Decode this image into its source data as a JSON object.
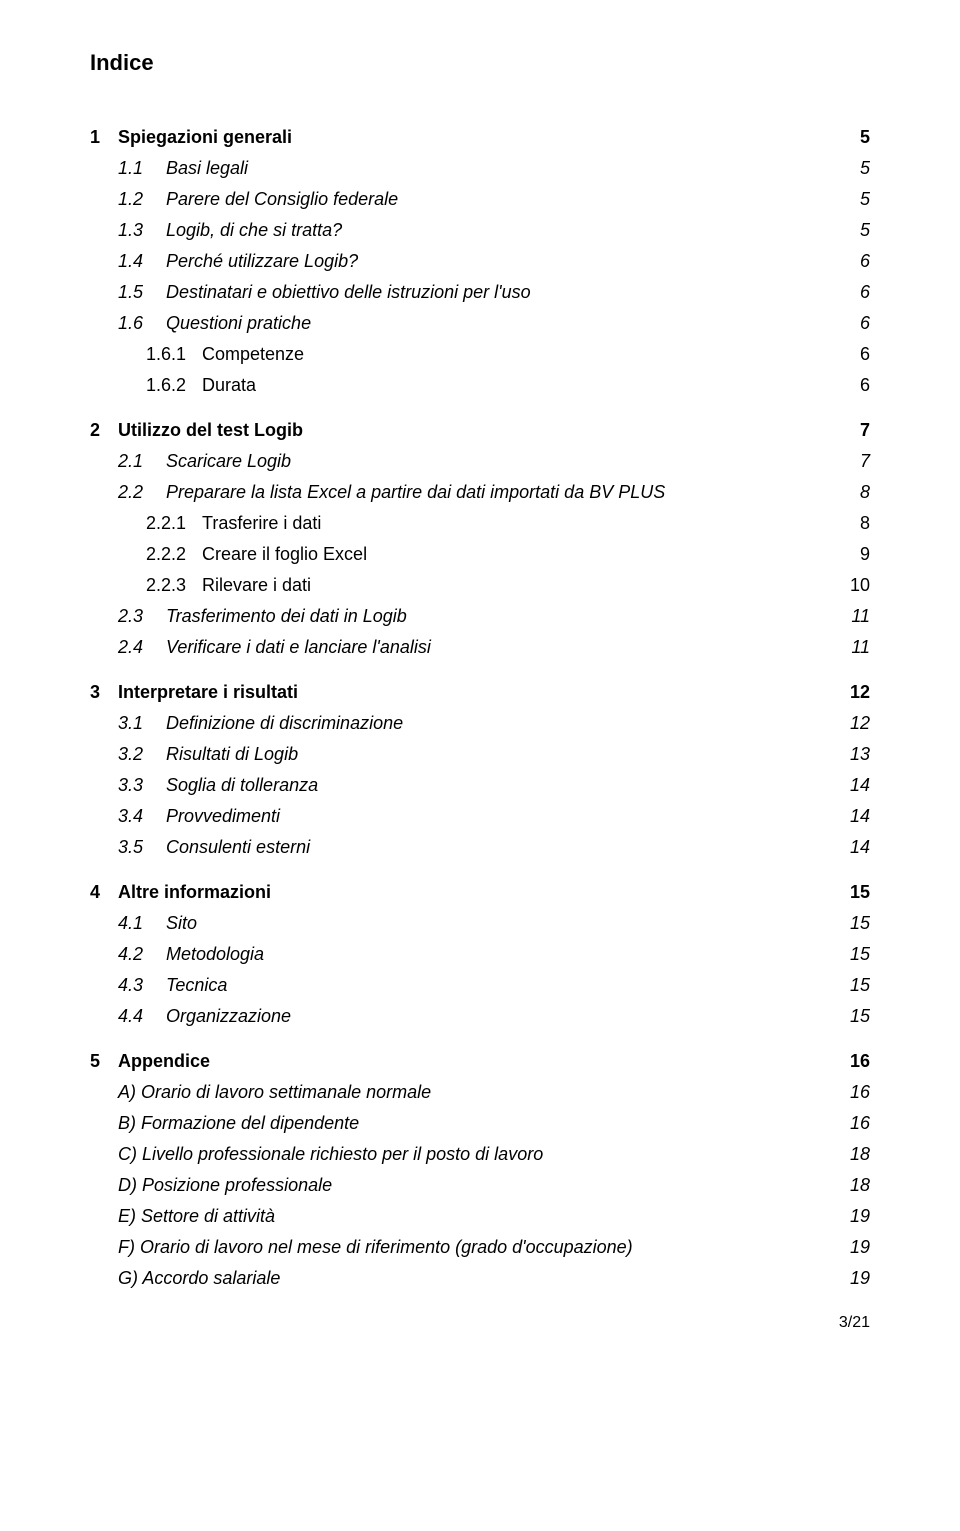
{
  "title": "Indice",
  "footer": "3/21",
  "toc": [
    {
      "level": 1,
      "num": "1",
      "label": "Spiegazioni generali",
      "page": "5"
    },
    {
      "level": 2,
      "num": "1.1",
      "label": "Basi legali",
      "page": "5"
    },
    {
      "level": 2,
      "num": "1.2",
      "label": "Parere del Consiglio federale",
      "page": "5"
    },
    {
      "level": 2,
      "num": "1.3",
      "label": "Logib, di che si tratta?",
      "page": "5"
    },
    {
      "level": 2,
      "num": "1.4",
      "label": "Perché utilizzare Logib?",
      "page": "6"
    },
    {
      "level": 2,
      "num": "1.5",
      "label": "Destinatari e obiettivo delle istruzioni per l'uso",
      "page": "6"
    },
    {
      "level": 2,
      "num": "1.6",
      "label": "Questioni pratiche",
      "page": "6"
    },
    {
      "level": 3,
      "num": "1.6.1",
      "label": "Competenze",
      "page": "6"
    },
    {
      "level": 3,
      "num": "1.6.2",
      "label": "Durata",
      "page": "6"
    },
    {
      "level": 1,
      "num": "2",
      "label": "Utilizzo del test Logib",
      "page": "7"
    },
    {
      "level": 2,
      "num": "2.1",
      "label": "Scaricare Logib",
      "page": "7"
    },
    {
      "level": 2,
      "num": "2.2",
      "label": "Preparare la lista Excel a partire dai dati importati da BV PLUS",
      "page": "8"
    },
    {
      "level": 3,
      "num": "2.2.1",
      "label": "Trasferire i dati",
      "page": "8"
    },
    {
      "level": 3,
      "num": "2.2.2",
      "label": "Creare il foglio Excel",
      "page": "9"
    },
    {
      "level": 3,
      "num": "2.2.3",
      "label": "Rilevare i dati",
      "page": "10"
    },
    {
      "level": 2,
      "num": "2.3",
      "label": "Trasferimento dei dati in Logib",
      "page": "11"
    },
    {
      "level": 2,
      "num": "2.4",
      "label": "Verificare i dati e lanciare l'analisi",
      "page": "11"
    },
    {
      "level": 1,
      "num": "3",
      "label": "Interpretare i risultati",
      "page": "12"
    },
    {
      "level": 2,
      "num": "3.1",
      "label": "Definizione di discriminazione",
      "page": "12"
    },
    {
      "level": 2,
      "num": "3.2",
      "label": "Risultati di Logib",
      "page": "13"
    },
    {
      "level": 2,
      "num": "3.3",
      "label": "Soglia di tolleranza",
      "page": "14"
    },
    {
      "level": 2,
      "num": "3.4",
      "label": "Provvedimenti",
      "page": "14"
    },
    {
      "level": 2,
      "num": "3.5",
      "label": "Consulenti esterni",
      "page": "14"
    },
    {
      "level": 1,
      "num": "4",
      "label": "Altre informazioni",
      "page": "15"
    },
    {
      "level": 2,
      "num": "4.1",
      "label": "Sito",
      "page": "15"
    },
    {
      "level": 2,
      "num": "4.2",
      "label": "Metodologia",
      "page": "15"
    },
    {
      "level": 2,
      "num": "4.3",
      "label": "Tecnica",
      "page": "15"
    },
    {
      "level": 2,
      "num": "4.4",
      "label": "Organizzazione",
      "page": "15"
    },
    {
      "level": 1,
      "num": "5",
      "label": "Appendice",
      "page": "16"
    },
    {
      "level": 4,
      "num": "",
      "label": "A) Orario di lavoro settimanale normale",
      "page": "16"
    },
    {
      "level": 4,
      "num": "",
      "label": "B) Formazione del dipendente",
      "page": "16"
    },
    {
      "level": 4,
      "num": "",
      "label": "C) Livello professionale richiesto per il posto di lavoro",
      "page": "18"
    },
    {
      "level": 4,
      "num": "",
      "label": "D) Posizione professionale",
      "page": "18"
    },
    {
      "level": 4,
      "num": "",
      "label": "E) Settore di attività",
      "page": "19"
    },
    {
      "level": 4,
      "num": "",
      "label": "F) Orario di lavoro nel mese di riferimento (grado d'occupazione)",
      "page": "19"
    },
    {
      "level": 4,
      "num": "",
      "label": "G) Accordo salariale",
      "page": "19"
    }
  ]
}
